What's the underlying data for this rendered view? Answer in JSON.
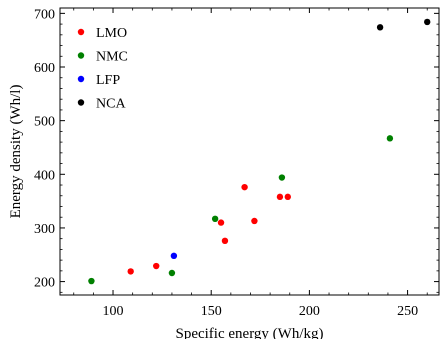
{
  "chart_data": {
    "type": "scatter",
    "xlabel": "Specific energy (Wh/kg)",
    "ylabel": "Energy density (Wh/l)",
    "xlim": [
      73,
      266
    ],
    "ylim": [
      175,
      710
    ],
    "xticks": [
      100,
      150,
      200,
      250
    ],
    "yticks": [
      200,
      300,
      400,
      500,
      600,
      700
    ],
    "grid": false,
    "legend": "top-left",
    "series": [
      {
        "name": "LMO",
        "color": "#ff0000",
        "points": [
          {
            "x": 109,
            "y": 219
          },
          {
            "x": 122,
            "y": 229
          },
          {
            "x": 155,
            "y": 310
          },
          {
            "x": 157,
            "y": 276
          },
          {
            "x": 167,
            "y": 376
          },
          {
            "x": 172,
            "y": 313
          },
          {
            "x": 185,
            "y": 358
          },
          {
            "x": 189,
            "y": 358
          }
        ]
      },
      {
        "name": "NMC",
        "color": "#008000",
        "points": [
          {
            "x": 89,
            "y": 201
          },
          {
            "x": 130,
            "y": 216
          },
          {
            "x": 152,
            "y": 317
          },
          {
            "x": 186,
            "y": 394
          },
          {
            "x": 241,
            "y": 467
          }
        ]
      },
      {
        "name": "LFP",
        "color": "#0000ff",
        "points": [
          {
            "x": 131,
            "y": 248
          }
        ]
      },
      {
        "name": "NCA",
        "color": "#000000",
        "points": [
          {
            "x": 236,
            "y": 674
          },
          {
            "x": 260,
            "y": 684
          }
        ]
      }
    ]
  }
}
